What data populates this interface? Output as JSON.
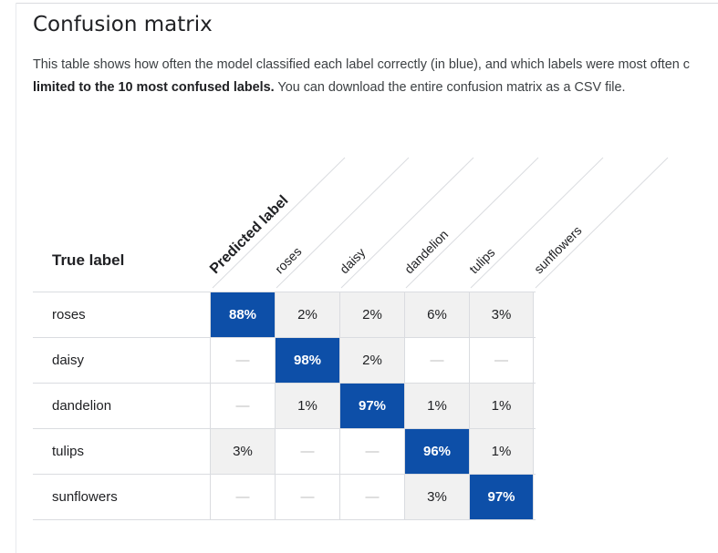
{
  "title": "Confusion matrix",
  "description": {
    "line1": "This table shows how often the model classified each label correctly (in blue), and which labels were most often c",
    "line2_bold": "limited to the 10 most confused labels.",
    "line2_rest": " You can download the entire confusion matrix as a CSV file."
  },
  "axes": {
    "true_label": "True label",
    "predicted_label": "Predicted label"
  },
  "columns": [
    "roses",
    "daisy",
    "dandelion",
    "tulips",
    "sunflowers"
  ],
  "rows": [
    {
      "label": "roses",
      "cells": [
        "88%",
        "2%",
        "2%",
        "6%",
        "3%"
      ]
    },
    {
      "label": "daisy",
      "cells": [
        "—",
        "98%",
        "2%",
        "—",
        "—"
      ]
    },
    {
      "label": "dandelion",
      "cells": [
        "—",
        "1%",
        "97%",
        "1%",
        "1%"
      ]
    },
    {
      "label": "tulips",
      "cells": [
        "3%",
        "—",
        "—",
        "96%",
        "1%"
      ]
    },
    {
      "label": "sunflowers",
      "cells": [
        "—",
        "—",
        "—",
        "3%",
        "97%"
      ]
    }
  ],
  "colors": {
    "correct": "#0d4fa8",
    "confused": "#f1f1f1",
    "empty_dash": "#bdbdbd"
  }
}
